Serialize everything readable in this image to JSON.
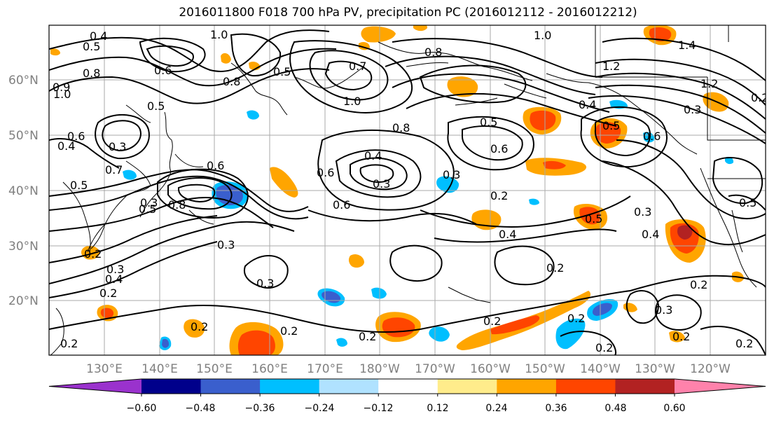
{
  "title": "2016011800 F018 700 hPa PV, precipitation PC (2016012112 - 2016012212)",
  "lat_labels": [
    "60°N",
    "50°N",
    "40°N",
    "30°N",
    "20°N"
  ],
  "lon_labels": [
    "130°E",
    "140°E",
    "150°E",
    "160°E",
    "170°E",
    "180°W",
    "170°W",
    "160°W",
    "150°W",
    "140°W",
    "130°W",
    "120°W"
  ],
  "colorbar": {
    "colors": [
      "#9a32cd",
      "#00008b",
      "#3a5fcd",
      "#00bfff",
      "#b0e2ff",
      "#ffffff",
      "#ffec8b",
      "#ffa500",
      "#ff4500",
      "#b22222",
      "#ff82ab"
    ],
    "tick_labels": [
      "−0.60",
      "−0.48",
      "−0.36",
      "−0.24",
      "−0.12",
      "0.12",
      "0.24",
      "0.36",
      "0.48",
      "0.60"
    ]
  },
  "contour_labels": [
    "0.4",
    "0.5",
    "1.0",
    "0.6",
    "0.8",
    "0.9",
    "1.0",
    "0.5",
    "0.6",
    "0.4",
    "0.5",
    "0.8",
    "0.7",
    "0.8",
    "1.0",
    "0.5",
    "1.4",
    "1.2",
    "1.0",
    "0.3",
    "1.2",
    "0.2",
    "0.4",
    "0.5",
    "0.8",
    "0.6",
    "0.3",
    "0.4",
    "0.3",
    "0.6",
    "0.5",
    "0.6",
    "0.6",
    "0.7",
    "0.3",
    "0.2",
    "0.5",
    "0.4",
    "0.3",
    "0.8",
    "0.6",
    "0.5",
    "0.3",
    "0.4",
    "0.2",
    "0.3",
    "0.4",
    "0.5",
    "0.3",
    "0.2",
    "0.3",
    "0.2",
    "0.3",
    "0.2",
    "0.2",
    "0.2",
    "0.2",
    "0.2",
    "0.2",
    "0.2",
    "0.2",
    "0.2",
    "0.2"
  ]
}
